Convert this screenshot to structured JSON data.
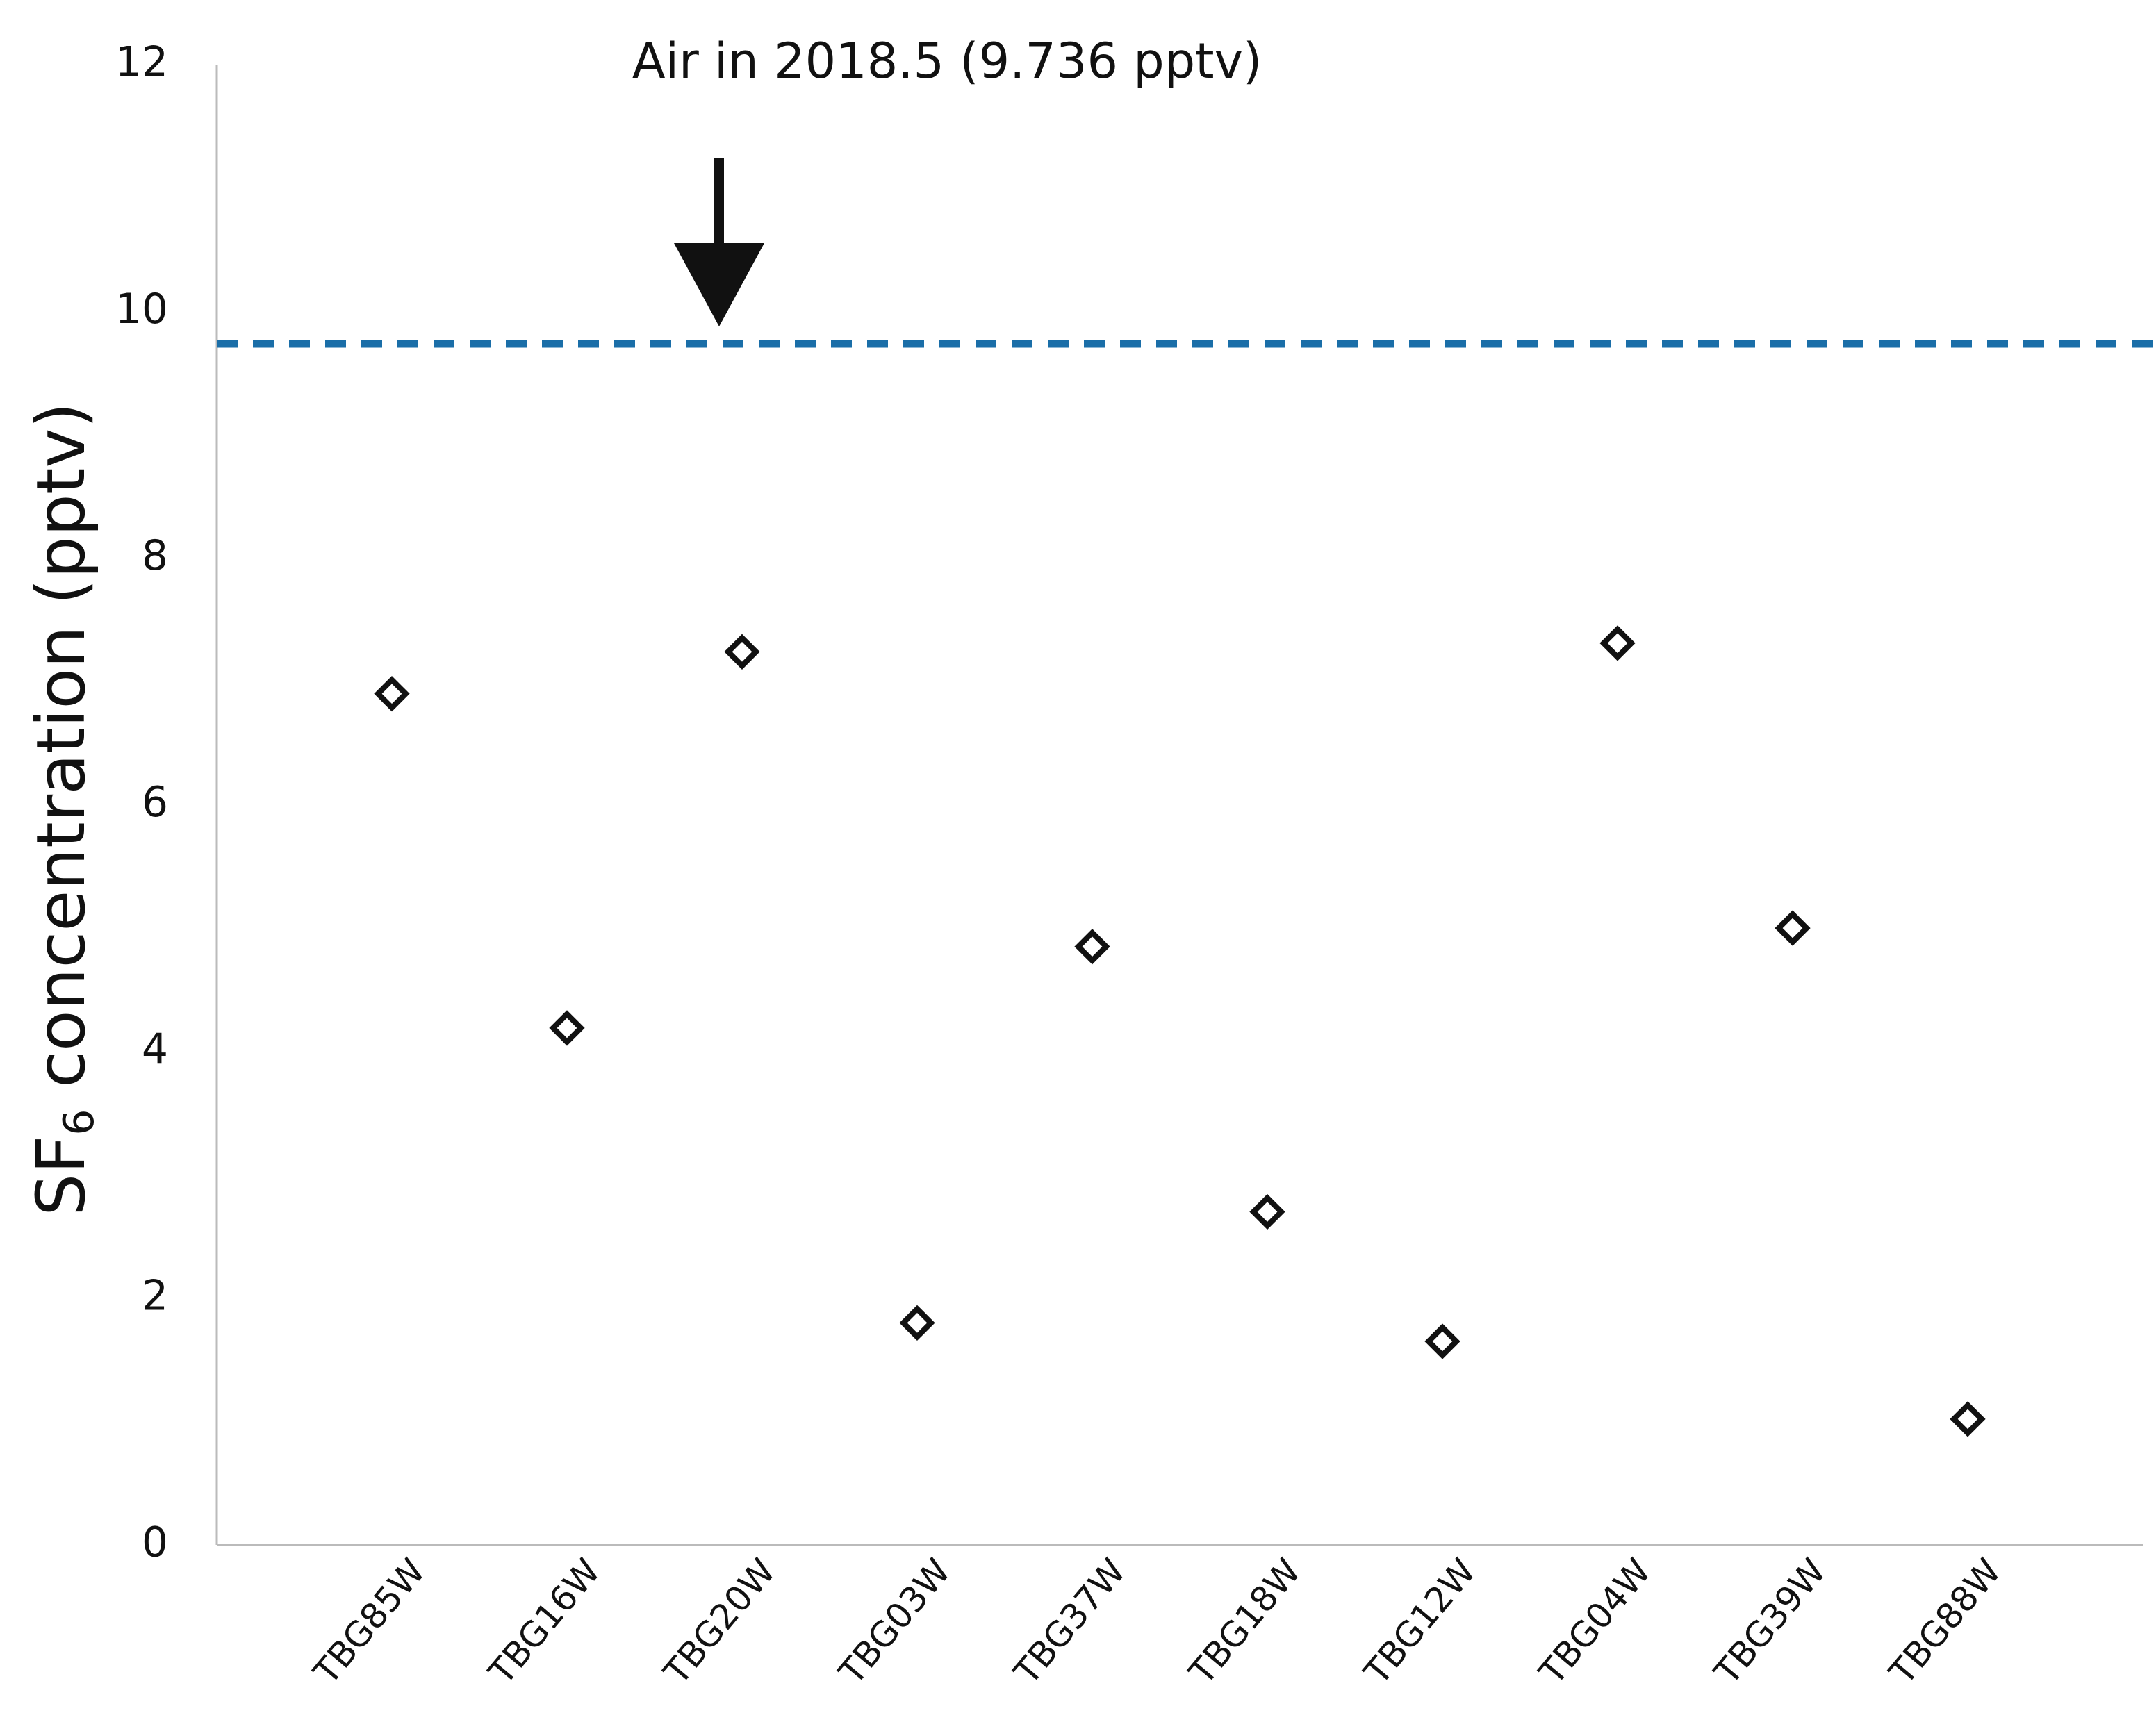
{
  "chart_data": {
    "type": "scatter",
    "y_label": {
      "main": "SF",
      "subscript": "6",
      "rest": " concentration (pptv)"
    },
    "categories": [
      "TBG85W",
      "TBG16W",
      "TBG20W",
      "TBG03W",
      "TBG37W",
      "TBG18W",
      "TBG12W",
      "TBG04W",
      "TBG39W",
      "TBG88W"
    ],
    "values": [
      6.9,
      4.19,
      7.24,
      1.8,
      4.85,
      2.7,
      1.65,
      7.31,
      5.0,
      1.02
    ],
    "color": "#111111",
    "ylim": [
      0,
      12
    ],
    "yticks": [
      0,
      2,
      4,
      6,
      8,
      10,
      12
    ],
    "grid": false,
    "reference_line": {
      "value": 9.736,
      "label": "Air in 2018.5 (9.736 pptv)",
      "color": "#1a6ea8"
    }
  }
}
